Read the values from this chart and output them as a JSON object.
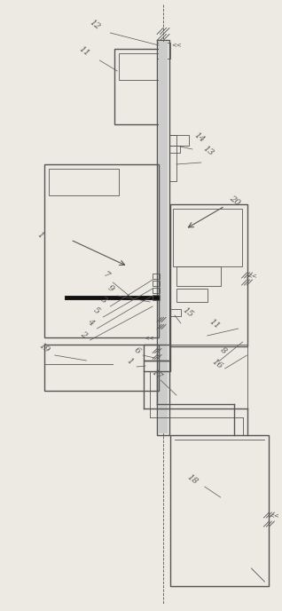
{
  "bg_color": "#ede9e3",
  "line_color": "#555555",
  "lw": 1.0,
  "tlw": 0.6,
  "fs": 7
}
